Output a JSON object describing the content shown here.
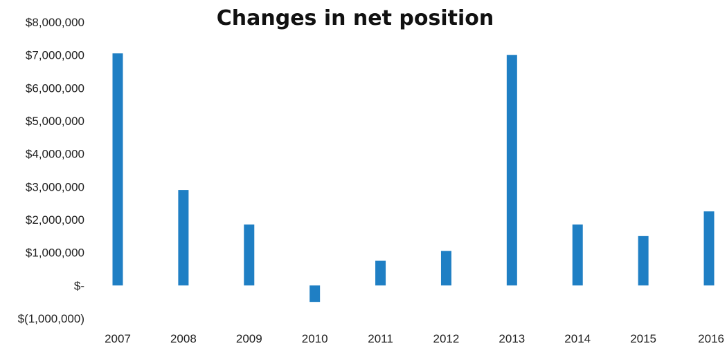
{
  "chart_data": {
    "type": "bar",
    "title": "Changes in net position",
    "xlabel": "",
    "ylabel": "",
    "categories": [
      "2007",
      "2008",
      "2009",
      "2010",
      "2011",
      "2012",
      "2013",
      "2014",
      "2015",
      "2016"
    ],
    "values": [
      7050000,
      2900000,
      1850000,
      -500000,
      750000,
      1050000,
      7000000,
      1850000,
      1500000,
      2250000
    ],
    "ylim": [
      -1000000,
      8000000
    ],
    "y_ticks": [
      8000000,
      7000000,
      6000000,
      5000000,
      4000000,
      3000000,
      2000000,
      1000000,
      0,
      -1000000
    ],
    "y_tick_labels": [
      "$8,000,000",
      "$7,000,000",
      "$6,000,000",
      "$5,000,000",
      "$4,000,000",
      "$3,000,000",
      "$2,000,000",
      "$1,000,000",
      "$-",
      "$(1,000,000)"
    ],
    "grid": false,
    "legend": "none",
    "bar_color": "#1f7fc4"
  }
}
